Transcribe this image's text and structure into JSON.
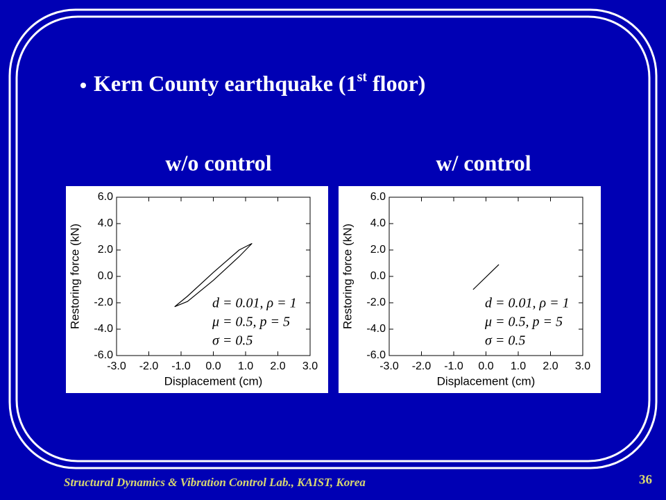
{
  "slide": {
    "title": "Kern County earthquake (1",
    "title_sup": "st",
    "title_end": " floor)",
    "footer": "Structural Dynamics & Vibration Control Lab., KAIST, Korea",
    "page_number": "36",
    "panel_titles": [
      "w/o control",
      "w/ control"
    ]
  },
  "chart_data": [
    {
      "type": "line",
      "xlabel": "Displacement (cm)",
      "ylabel": "Restoring force (kN)",
      "xlim": [
        -3,
        3
      ],
      "ylim": [
        -6,
        6
      ],
      "xticks": [
        {
          "value": -3,
          "label": "-3.0"
        },
        {
          "value": -2,
          "label": "-2.0"
        },
        {
          "value": -1,
          "label": "-1.0"
        },
        {
          "value": 0,
          "label": "0.0"
        },
        {
          "value": 1,
          "label": "1.0"
        },
        {
          "value": 2,
          "label": "2.0"
        },
        {
          "value": 3,
          "label": "3.0"
        }
      ],
      "yticks": [
        {
          "value": -6,
          "label": "-6.0"
        },
        {
          "value": -4,
          "label": "-4.0"
        },
        {
          "value": -2,
          "label": "-2.0"
        },
        {
          "value": 0,
          "label": "0.0"
        },
        {
          "value": 2,
          "label": "2.0"
        },
        {
          "value": 4,
          "label": "4.0"
        },
        {
          "value": 6,
          "label": "6.0"
        }
      ],
      "x": [
        -1.2,
        -0.8,
        0,
        0.8,
        1.2,
        0.8,
        0,
        -0.8,
        -1.2
      ],
      "series": [
        {
          "color": "#000000",
          "values": [
            -2.3,
            -1.9,
            -0.3,
            1.5,
            2.5,
            2.0,
            0.3,
            -1.5,
            -2.3
          ]
        }
      ],
      "annotations": [
        "d = 0.01,  ρ = 1",
        "μ = 0.5,   p = 5",
        "σ = 0.5"
      ]
    },
    {
      "type": "line",
      "xlabel": "Displacement (cm)",
      "ylabel": "Restoring force (kN)",
      "xlim": [
        -3,
        3
      ],
      "ylim": [
        -6,
        6
      ],
      "xticks": [
        {
          "value": -3,
          "label": "-3.0"
        },
        {
          "value": -2,
          "label": "-2.0"
        },
        {
          "value": -1,
          "label": "-1.0"
        },
        {
          "value": 0,
          "label": "0.0"
        },
        {
          "value": 1,
          "label": "1.0"
        },
        {
          "value": 2,
          "label": "2.0"
        },
        {
          "value": 3,
          "label": "3.0"
        }
      ],
      "yticks": [
        {
          "value": -6,
          "label": "-6.0"
        },
        {
          "value": -4,
          "label": "-4.0"
        },
        {
          "value": -2,
          "label": "-2.0"
        },
        {
          "value": 0,
          "label": "0.0"
        },
        {
          "value": 2,
          "label": "2.0"
        },
        {
          "value": 4,
          "label": "4.0"
        },
        {
          "value": 6,
          "label": "6.0"
        }
      ],
      "x": [
        -0.4,
        0.4
      ],
      "series": [
        {
          "color": "#000000",
          "values": [
            -1.0,
            0.9
          ]
        }
      ],
      "annotations": [
        "d = 0.01,  ρ = 1",
        "μ = 0.5,   p = 5",
        "σ = 0.5"
      ]
    }
  ]
}
